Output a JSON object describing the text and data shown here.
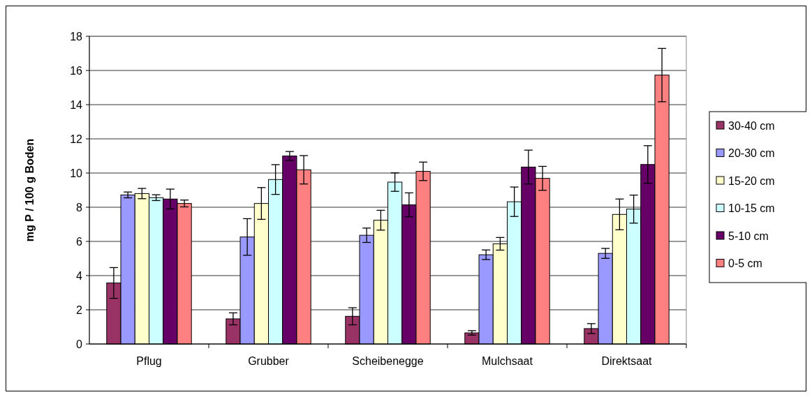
{
  "chart_data": {
    "type": "bar",
    "ylabel": "mg P / 100 g Boden",
    "categories": [
      "Pflug",
      "Grubber",
      "Scheibenegge",
      "Mulchsaat",
      "Direktsaat"
    ],
    "ylim": [
      0,
      18
    ],
    "yticks": [
      0,
      2,
      4,
      6,
      8,
      10,
      12,
      14,
      16,
      18
    ],
    "grid": "y",
    "legend": "right",
    "series": [
      {
        "name": "30-40 cm",
        "color": "#993366",
        "values": [
          3.57,
          1.47,
          1.62,
          0.65,
          0.9
        ],
        "errors": [
          0.9,
          0.35,
          0.5,
          0.13,
          0.29
        ]
      },
      {
        "name": "20-30 cm",
        "color": "#9999ff",
        "values": [
          8.72,
          6.26,
          6.36,
          5.22,
          5.3
        ],
        "errors": [
          0.17,
          1.07,
          0.42,
          0.28,
          0.29
        ]
      },
      {
        "name": "15-20 cm",
        "color": "#ffffcc",
        "values": [
          8.8,
          8.22,
          7.24,
          5.86,
          7.58
        ],
        "errors": [
          0.3,
          0.93,
          0.58,
          0.37,
          0.9
        ]
      },
      {
        "name": "10-15 cm",
        "color": "#ccffff",
        "values": [
          8.56,
          9.62,
          9.47,
          8.32,
          7.89
        ],
        "errors": [
          0.17,
          0.87,
          0.54,
          0.86,
          0.82
        ]
      },
      {
        "name": "5-10 cm",
        "color": "#660066",
        "values": [
          8.48,
          11.0,
          8.14,
          10.35,
          10.5
        ],
        "errors": [
          0.58,
          0.26,
          0.7,
          0.99,
          1.1
        ]
      },
      {
        "name": "0-5 cm",
        "color": "#ff8080",
        "values": [
          8.22,
          10.19,
          10.1,
          9.69,
          15.73
        ],
        "errors": [
          0.2,
          0.83,
          0.54,
          0.7,
          1.56
        ]
      }
    ]
  }
}
